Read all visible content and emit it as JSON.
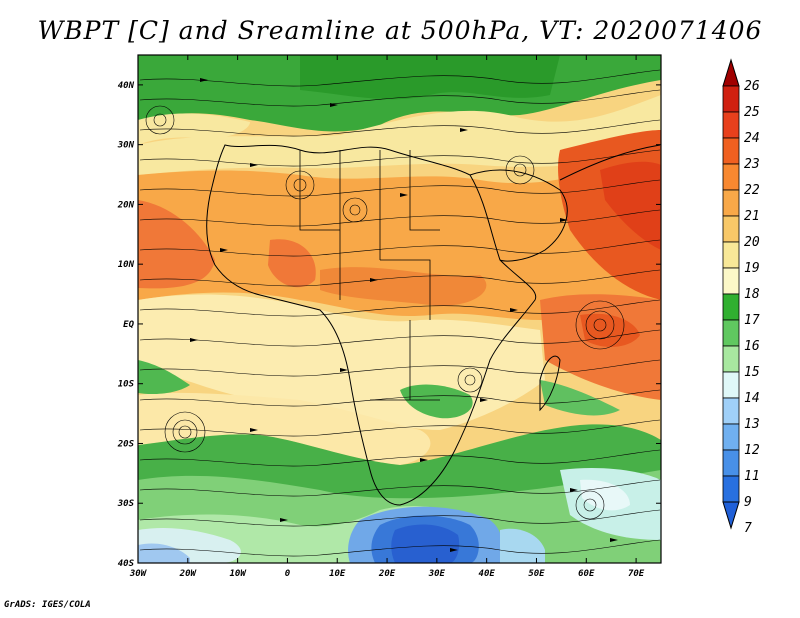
{
  "title": "WBPT [C] and Sreamline at 500hPa, VT: 2020071406",
  "credit": "GrADS: IGES/COLA",
  "map": {
    "lon_labels": [
      "30W",
      "20W",
      "10W",
      "0",
      "10E",
      "20E",
      "30E",
      "40E",
      "50E",
      "60E",
      "70E"
    ],
    "lat_labels": [
      "40N",
      "30N",
      "20N",
      "10N",
      "EQ",
      "10S",
      "20S",
      "30S",
      "40S"
    ],
    "lon_range": [
      -30,
      75
    ],
    "lat_range": [
      -40,
      45
    ]
  },
  "colorbar": {
    "labels": [
      "26",
      "25",
      "24",
      "23",
      "22",
      "21",
      "20",
      "19",
      "18",
      "17",
      "16",
      "15",
      "14",
      "13",
      "12",
      "11",
      "9",
      "7"
    ],
    "colors": [
      "#a00000",
      "#d02010",
      "#e8401c",
      "#f06020",
      "#f88830",
      "#f8a848",
      "#f8c868",
      "#f8e898",
      "#fcf8c8",
      "#30b030",
      "#60c860",
      "#a8e8a0",
      "#e0f8f8",
      "#a0d0f8",
      "#70b0f0",
      "#4890e8",
      "#2870e0",
      "#2060d8"
    ]
  },
  "icons": [
    "streamline-arrow-icon",
    "colorbar-arrow-up-icon",
    "colorbar-arrow-down-icon"
  ]
}
